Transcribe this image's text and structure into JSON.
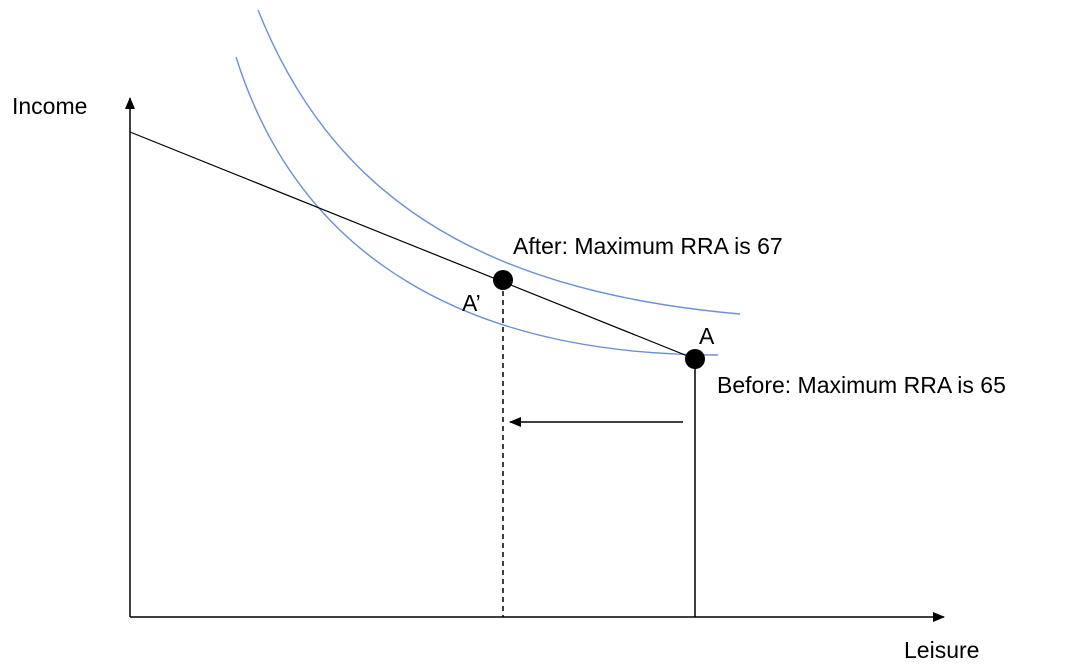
{
  "axes": {
    "y_label": "Income",
    "x_label": "Leisure"
  },
  "points": {
    "before_point_label": "A",
    "after_point_label": "A’"
  },
  "annotations": {
    "after_text": "After: Maximum RRA is 67",
    "before_text": "Before: Maximum RRA is 65"
  },
  "colors": {
    "axis": "#000000",
    "budget_line": "#000000",
    "indifference_curve": "#6b8fd6",
    "point_marker": "#000000",
    "background": "#ffffff"
  }
}
